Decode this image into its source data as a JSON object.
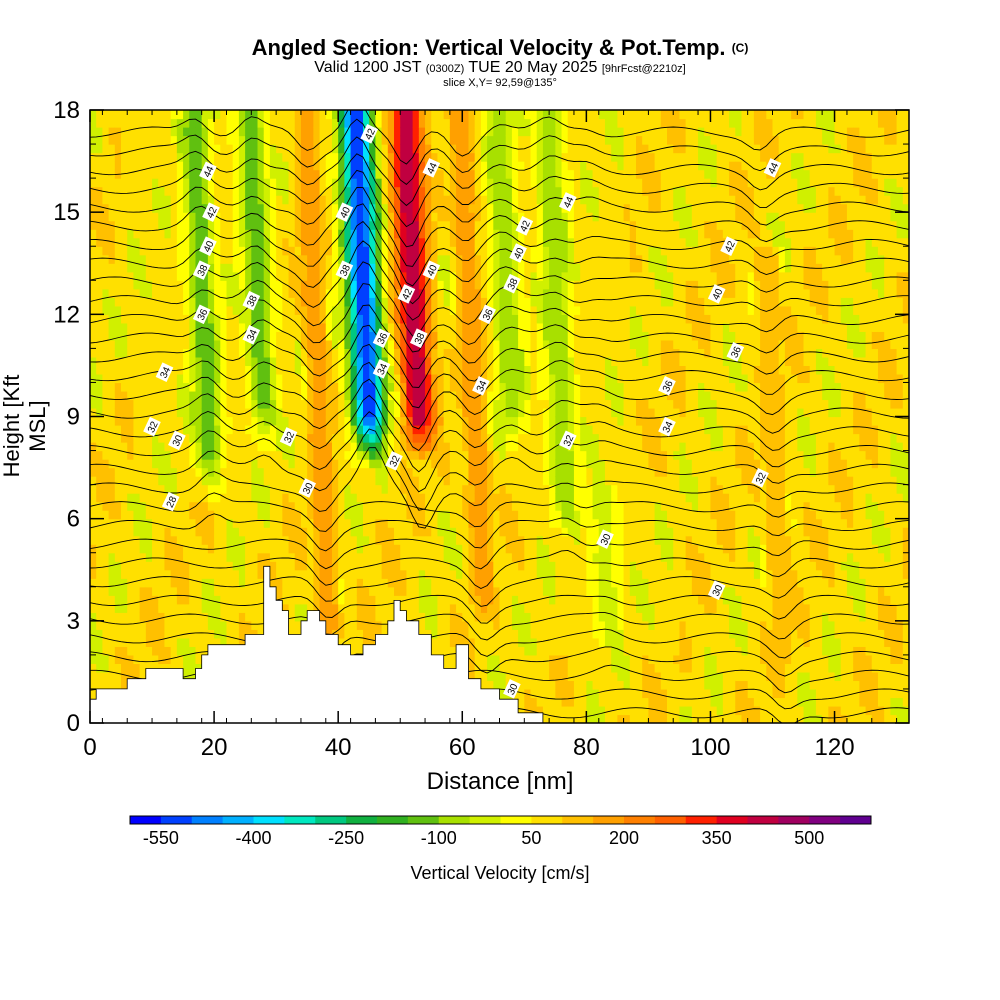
{
  "header": {
    "title": "Angled Section: Vertical Velocity & Pot.Temp.",
    "copyright": "(C)",
    "valid_prefix": "Valid 1200 JST",
    "valid_utc": "(0300Z)",
    "valid_date": "TUE 20 May 2025",
    "forecast": "[9hrFcst@2210z]",
    "slice": "slice X,Y= 92,59@135°"
  },
  "chart_data": {
    "type": "heatmap",
    "xlabel": "Distance [nm]",
    "ylabel": "Height [Kft MSL]",
    "xlim": [
      0,
      132
    ],
    "ylim": [
      0,
      18
    ],
    "x_ticks": [
      0,
      20,
      40,
      60,
      80,
      100,
      120
    ],
    "y_ticks": [
      0,
      3,
      6,
      9,
      12,
      15,
      18
    ],
    "colorbar": {
      "label": "Vertical Velocity [cm/s]",
      "min": -600,
      "max": 600,
      "step": 50,
      "tick_labels": [
        -550,
        -400,
        -250,
        -100,
        50,
        200,
        350,
        500
      ],
      "colors": [
        "#0000ff",
        "#0040ff",
        "#0080ff",
        "#00b0ff",
        "#00e0ff",
        "#00e8c0",
        "#00c880",
        "#10b040",
        "#30b020",
        "#60c010",
        "#a8e000",
        "#d0f000",
        "#ffff00",
        "#ffe000",
        "#ffc000",
        "#ffa000",
        "#ff8000",
        "#ff6000",
        "#ff2000",
        "#e00020",
        "#c00040",
        "#a00060",
        "#800080",
        "#600090"
      ]
    },
    "vertical_velocity_bands": [
      {
        "x": 19,
        "value": -150,
        "top_height": 18,
        "bottom_height": 6.5
      },
      {
        "x": 28,
        "value": -150,
        "top_height": 18,
        "bottom_height": 8
      },
      {
        "x": 37,
        "value": 200,
        "top_height": 18,
        "bottom_height": 1.5
      },
      {
        "x": 45,
        "value": -550,
        "top_height": 18,
        "bottom_height": 7.5
      },
      {
        "x": 53,
        "value": 450,
        "top_height": 18,
        "bottom_height": 7.5
      },
      {
        "x": 62,
        "value": 200,
        "top_height": 18,
        "bottom_height": 2.5
      },
      {
        "x": 68,
        "value": -100,
        "top_height": 18,
        "bottom_height": 8
      },
      {
        "x": 76,
        "value": -100,
        "top_height": 18,
        "bottom_height": 5.5
      },
      {
        "x": 82,
        "value": -50,
        "top_height": 7,
        "bottom_height": 2
      },
      {
        "x": 110,
        "value": 150,
        "top_height": 14,
        "bottom_height": 1
      }
    ],
    "terrain": {
      "x": [
        0,
        1,
        2,
        6,
        9,
        15,
        17,
        18,
        19,
        25,
        28,
        29,
        30,
        31,
        32,
        33,
        34,
        35,
        37,
        38,
        40,
        42,
        44,
        46,
        48,
        49,
        50,
        51,
        53,
        55,
        57,
        59,
        61,
        63,
        66,
        69,
        71,
        73
      ],
      "height": [
        0.7,
        1.0,
        1.0,
        1.3,
        1.6,
        1.3,
        1.6,
        2.0,
        2.3,
        2.6,
        4.6,
        4.0,
        3.6,
        3.3,
        2.6,
        2.6,
        3.0,
        3.3,
        3.0,
        2.6,
        2.3,
        2.0,
        2.3,
        2.6,
        3.0,
        3.6,
        3.3,
        3.0,
        2.6,
        2.0,
        1.6,
        2.3,
        1.3,
        1.0,
        0.7,
        0.3,
        0.3,
        0
      ]
    },
    "pot_temp_contours": [
      {
        "value": 28,
        "label_x": 13,
        "label_height": 6.5
      },
      {
        "value": 30,
        "label_x": 14,
        "label_height": 8.3
      },
      {
        "value": 32,
        "label_x": 10,
        "label_height": 8.7
      },
      {
        "value": 34,
        "label_x": 12,
        "label_height": 10.3
      },
      {
        "value": 36,
        "label_x": 18,
        "label_height": 12.0
      },
      {
        "value": 38,
        "label_x": 18,
        "label_height": 13.3
      },
      {
        "value": 40,
        "label_x": 19,
        "label_height": 14.0
      },
      {
        "value": 42,
        "label_x": 19.5,
        "label_height": 15.0
      },
      {
        "value": 44,
        "label_x": 19,
        "label_height": 16.2
      },
      {
        "value": 38,
        "label_x": 26,
        "label_height": 12.4
      },
      {
        "value": 34,
        "label_x": 26,
        "label_height": 11.4
      },
      {
        "value": 32,
        "label_x": 32,
        "label_height": 8.4
      },
      {
        "value": 30,
        "label_x": 35,
        "label_height": 6.9
      },
      {
        "value": 40,
        "label_x": 41,
        "label_height": 15.0
      },
      {
        "value": 38,
        "label_x": 41,
        "label_height": 13.3
      },
      {
        "value": 42,
        "label_x": 45,
        "label_height": 17.3
      },
      {
        "value": 36,
        "label_x": 47,
        "label_height": 11.3
      },
      {
        "value": 34,
        "label_x": 47,
        "label_height": 10.4
      },
      {
        "value": 32,
        "label_x": 49,
        "label_height": 7.7
      },
      {
        "value": 42,
        "label_x": 51,
        "label_height": 12.6
      },
      {
        "value": 38,
        "label_x": 53,
        "label_height": 11.3
      },
      {
        "value": 40,
        "label_x": 55,
        "label_height": 13.3
      },
      {
        "value": 44,
        "label_x": 55,
        "label_height": 16.3
      },
      {
        "value": 36,
        "label_x": 64,
        "label_height": 12.0
      },
      {
        "value": 34,
        "label_x": 63,
        "label_height": 9.9
      },
      {
        "value": 38,
        "label_x": 68,
        "label_height": 12.9
      },
      {
        "value": 40,
        "label_x": 69,
        "label_height": 13.8
      },
      {
        "value": 42,
        "label_x": 70,
        "label_height": 14.6
      },
      {
        "value": 44,
        "label_x": 77,
        "label_height": 15.3
      },
      {
        "value": 32,
        "label_x": 77,
        "label_height": 8.3
      },
      {
        "value": 30,
        "label_x": 83,
        "label_height": 5.4
      },
      {
        "value": 30,
        "label_x": 68,
        "label_height": 1.0
      },
      {
        "value": 44,
        "label_x": 110,
        "label_height": 16.3
      },
      {
        "value": 42,
        "label_x": 103,
        "label_height": 14.0
      },
      {
        "value": 40,
        "label_x": 101,
        "label_height": 12.6
      },
      {
        "value": 36,
        "label_x": 104,
        "label_height": 10.9
      },
      {
        "value": 36,
        "label_x": 93,
        "label_height": 9.9
      },
      {
        "value": 34,
        "label_x": 93,
        "label_height": 8.7
      },
      {
        "value": 32,
        "label_x": 108,
        "label_height": 7.2
      },
      {
        "value": 30,
        "label_x": 101,
        "label_height": 3.9
      }
    ]
  }
}
